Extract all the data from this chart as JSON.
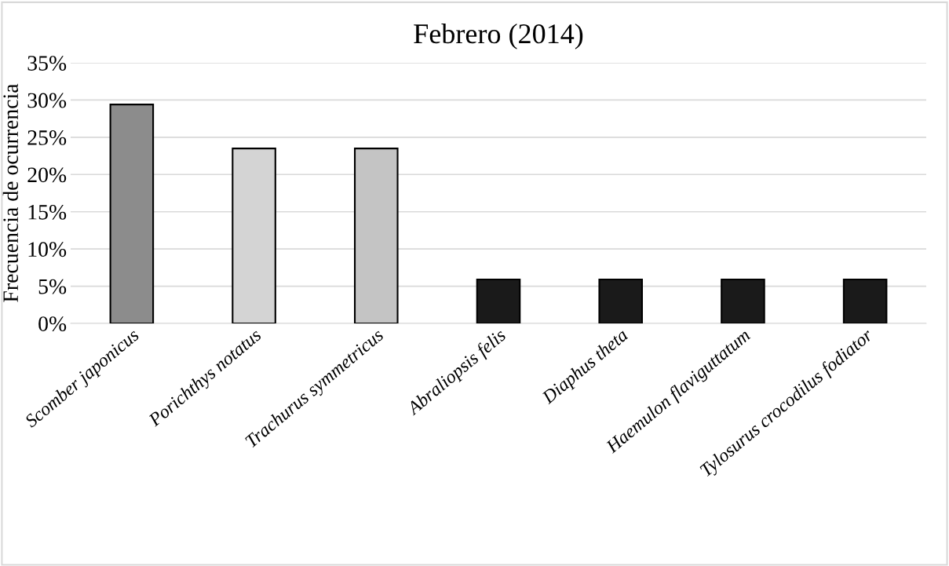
{
  "chart_data": {
    "type": "bar",
    "title": "Febrero (2014)",
    "ylabel": "Frecuencia de ocurrencia",
    "categories": [
      "Scomber japonicus",
      "Porichthys notatus",
      "Trachurus symmetricus",
      "Abraliopsis felis",
      "Diaphus theta",
      "Haemulon flaviguttatum",
      "Tylosurus crocodilus fodiator"
    ],
    "values": [
      29.4,
      23.5,
      23.5,
      5.9,
      5.9,
      5.9,
      5.9
    ],
    "colors": [
      "#8c8c8c",
      "#d4d4d4",
      "#c4c4c4",
      "#1a1a1a",
      "#1a1a1a",
      "#1a1a1a",
      "#1a1a1a"
    ],
    "ylim": [
      0,
      35
    ],
    "yticks": [
      {
        "value": 0,
        "label": "0%"
      },
      {
        "value": 5,
        "label": "5%"
      },
      {
        "value": 10,
        "label": "10%"
      },
      {
        "value": 15,
        "label": "15%"
      },
      {
        "value": 20,
        "label": "20%"
      },
      {
        "value": 25,
        "label": "25%"
      },
      {
        "value": 30,
        "label": "30%"
      },
      {
        "value": 35,
        "label": "35%"
      }
    ],
    "grid": "y",
    "legend": false
  }
}
